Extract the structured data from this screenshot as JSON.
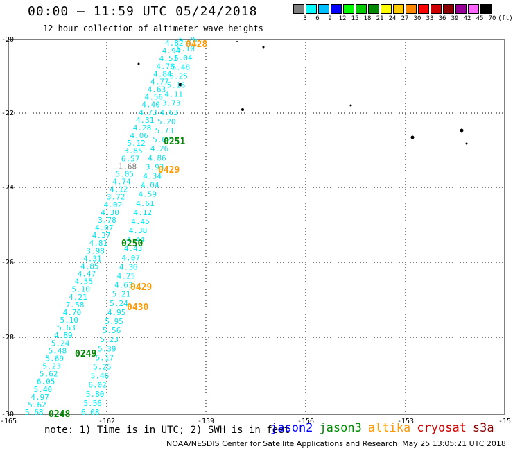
{
  "header": {
    "title": "00:00 – 11:59 UTC 05/24/2018",
    "subtitle": "12 hour collection of altimeter wave heights"
  },
  "colorbar": {
    "labels": [
      "3",
      "6",
      "9",
      "12",
      "15",
      "18",
      "21",
      "24",
      "27",
      "30",
      "33",
      "36",
      "39",
      "42",
      "45",
      "70"
    ],
    "colors": [
      "#7f7f7f",
      "#00ffff",
      "#00bfff",
      "#0000ff",
      "#00ff00",
      "#00cc00",
      "#008800",
      "#ffff00",
      "#ffcc00",
      "#ff8800",
      "#ff0000",
      "#cc0000",
      "#880000",
      "#990099",
      "#ff66ff",
      "#000000"
    ],
    "unit": "(ft)"
  },
  "map": {
    "lon_labels": [
      "-165",
      "-162",
      "-159",
      "-156",
      "-153",
      "-15"
    ],
    "lat_labels": [
      "-20",
      "-22",
      "-24",
      "-26",
      "-28",
      "-30"
    ],
    "colors": {
      "cyan": "#00e5ee",
      "green": "#008800",
      "orange": "#ff9900",
      "gray": "#777777"
    },
    "track_values_left": [
      "4.82",
      "4.94",
      "4.51",
      "4.76",
      "4.84",
      "4.77",
      "4.63",
      "4.56",
      "4.40",
      "4.73",
      "4.31",
      "4.28",
      "4.06",
      "5.12",
      "3.85",
      "6.57",
      "1.68",
      "5.05",
      "4.74",
      "4.12",
      "3.72",
      "4.02",
      "4.30",
      "3.78",
      "4.07",
      "4.37",
      "4.81",
      "3.98",
      "4.31",
      "4.85",
      "4.47",
      "4.55",
      "5.10",
      "4.21",
      "7.58",
      "4.70",
      "5.10",
      "5.63",
      "4.89",
      "5.24",
      "5.48",
      "5.69",
      "5.23",
      "5.62",
      "6.05",
      "5.40",
      "4.97",
      "5.62",
      "5.68"
    ],
    "track_values_right": [
      "5.26",
      "5.10",
      "5.04",
      "5.48",
      "5.25",
      "5.16",
      "4.11",
      "3.73",
      "4.63",
      "5.20",
      "5.73",
      "5.02",
      "4.26",
      "4.86",
      "3.93",
      "4.34",
      "4.04",
      "4.59",
      "4.61",
      "4.12",
      "4.45",
      "4.38",
      "4.44",
      "4.43",
      "4.07",
      "4.36",
      "4.25",
      "4.63",
      "5.21",
      "5.24",
      "4.95",
      "5.95",
      "5.56",
      "5.23",
      "5.39",
      "5.17",
      "5.25",
      "5.46",
      "6.02",
      "5.80",
      "5.56",
      "6.08"
    ],
    "pass_labels": [
      {
        "text": "0428",
        "color": "orange"
      },
      {
        "text": "0251",
        "color": "green"
      },
      {
        "text": "0429",
        "color": "orange"
      },
      {
        "text": "0250",
        "color": "green"
      },
      {
        "text": "0429",
        "color": "orange"
      },
      {
        "text": "0430",
        "color": "orange"
      },
      {
        "text": "0249",
        "color": "green"
      },
      {
        "text": "0248",
        "color": "green"
      }
    ]
  },
  "footer": {
    "note": "note: 1) Time is in UTC; 2) SWH is in feet",
    "satellites": [
      {
        "name": "jason2",
        "color": "#0000ff"
      },
      {
        "name": "jason3",
        "color": "#008800"
      },
      {
        "name": "altika",
        "color": "#ff9900"
      },
      {
        "name": "cryosat",
        "color": "#cc0000"
      },
      {
        "name": "s3a",
        "color": "#880000"
      }
    ],
    "credit": "NOAA/NESDIS Center for Satellite Applications and Research",
    "timestamp": "May 25 13:05:21 UTC 2018"
  }
}
